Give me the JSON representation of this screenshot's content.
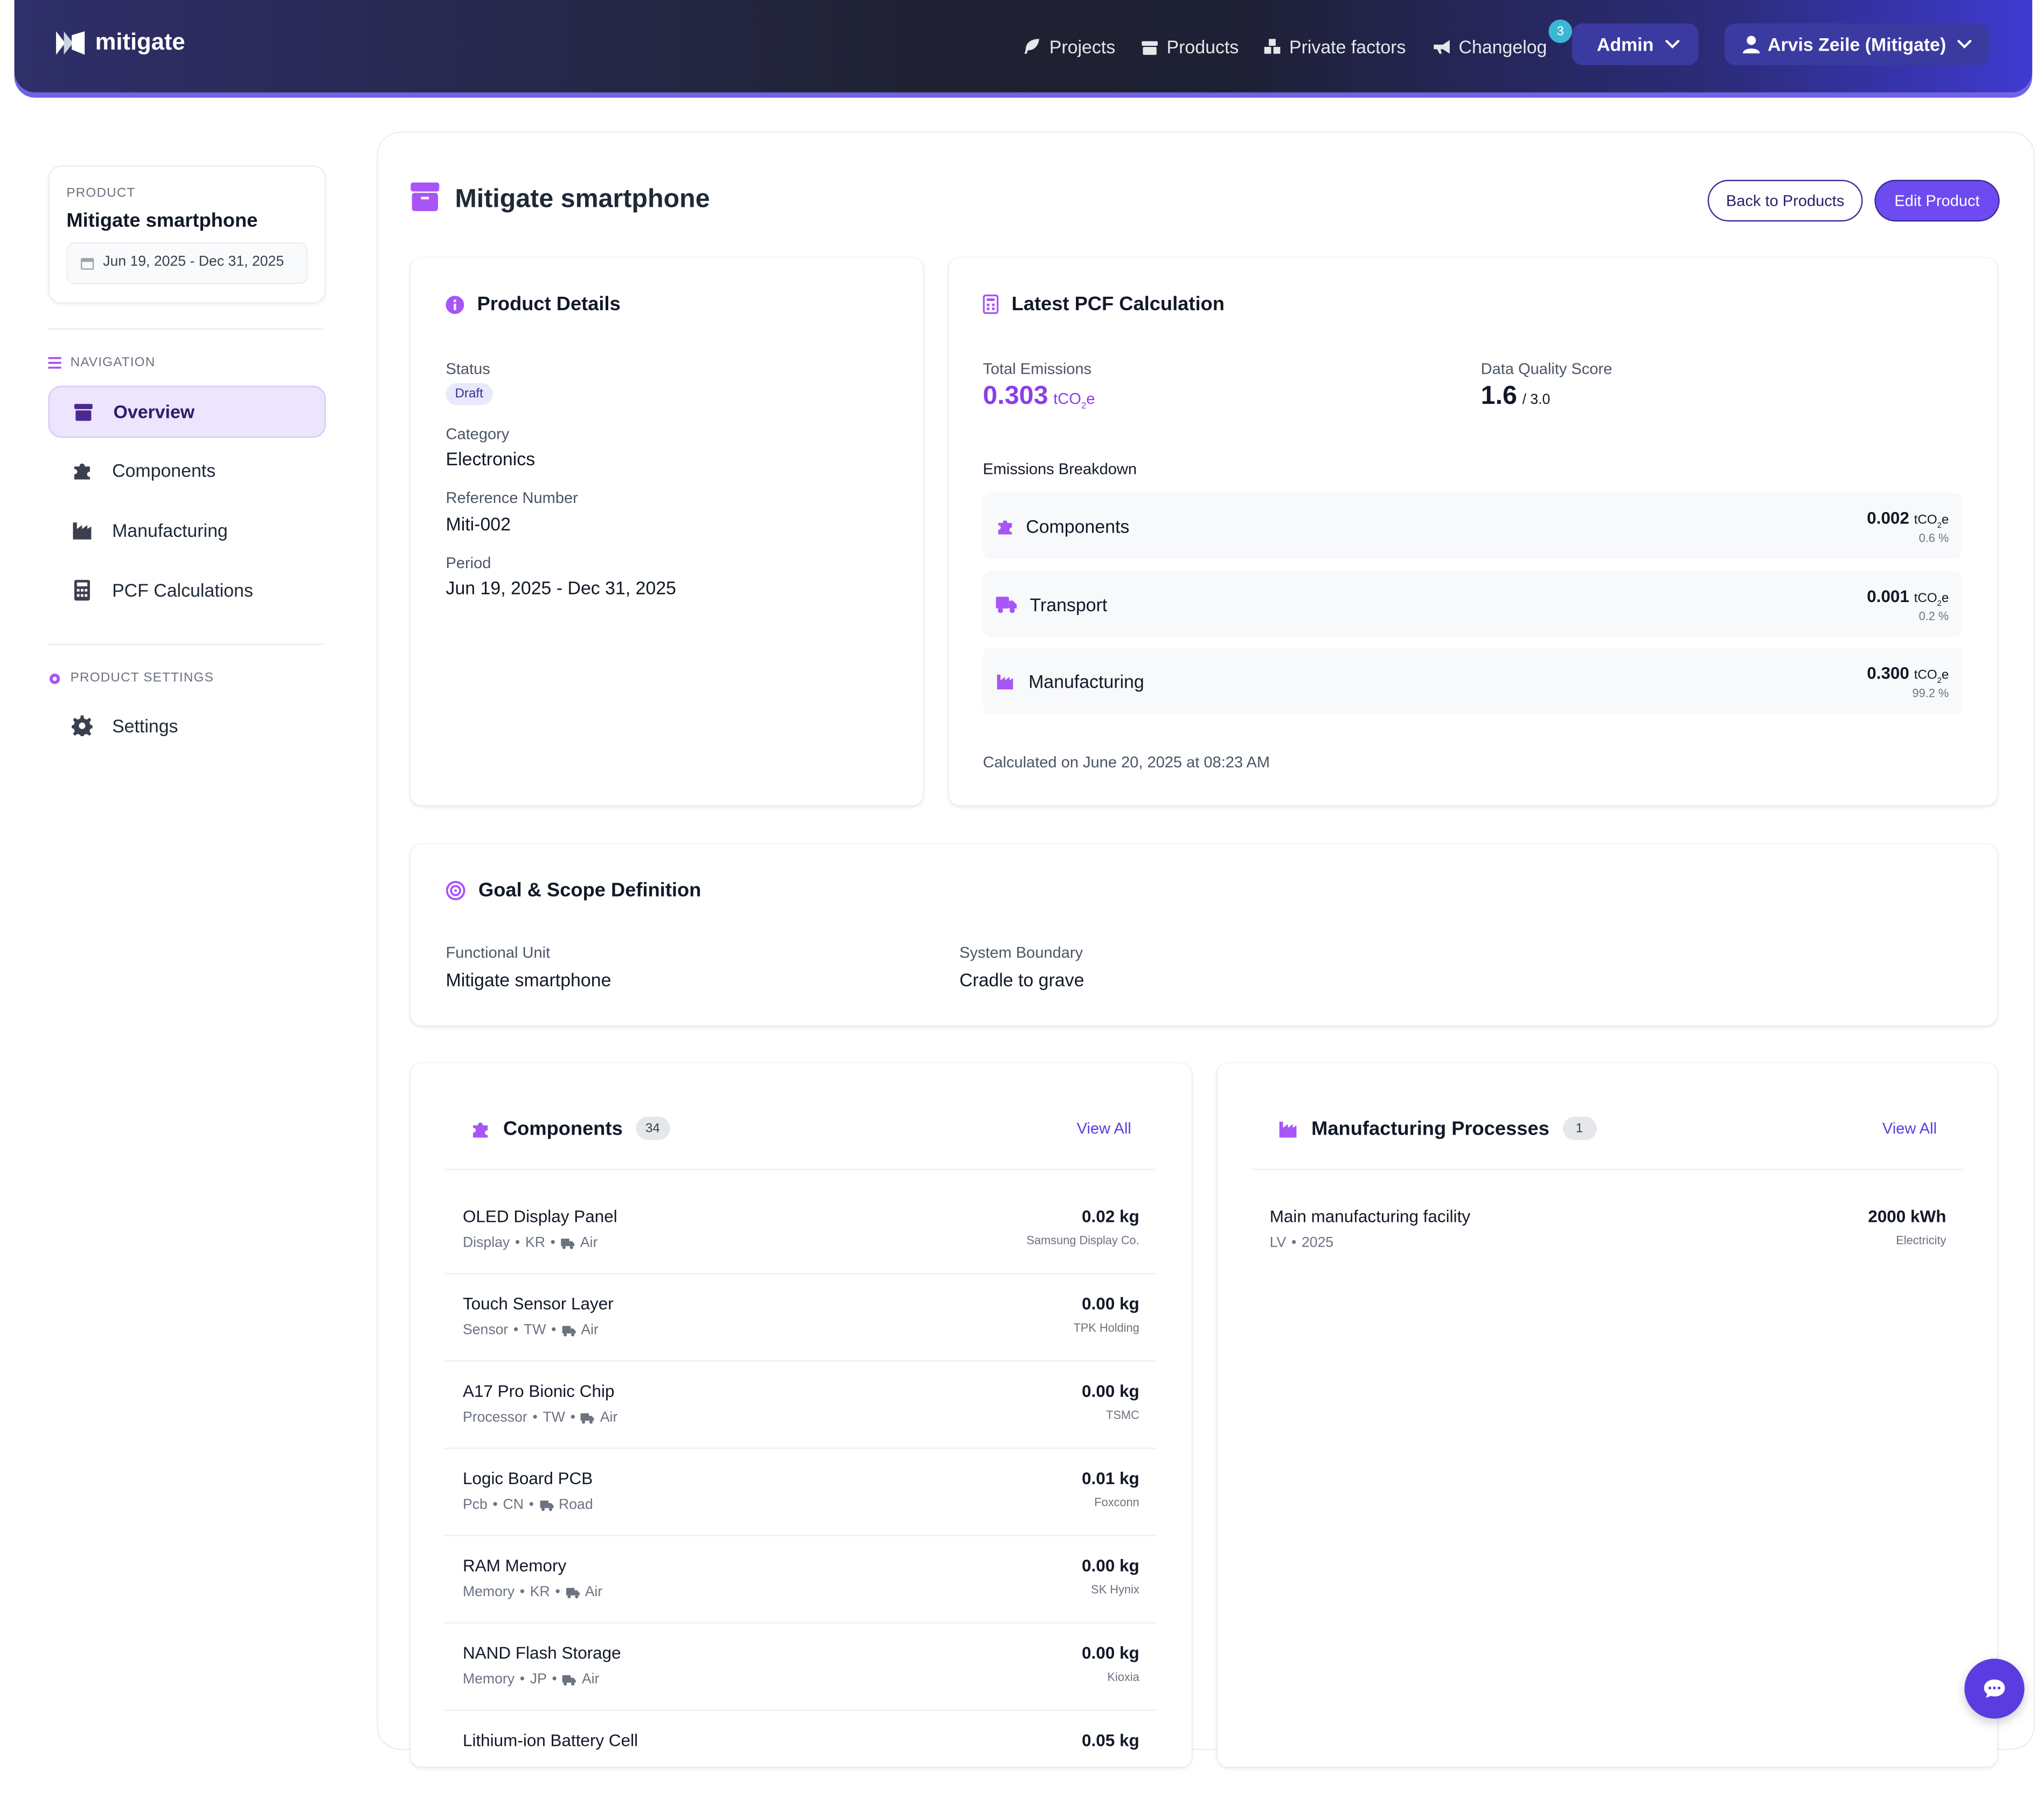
{
  "brand": {
    "name": "mitigate"
  },
  "topnav": {
    "projects": "Projects",
    "products": "Products",
    "private_factors": "Private factors",
    "changelog": "Changelog",
    "changelog_badge": "3",
    "admin": "Admin",
    "user": "Arvis Zeile (Mitigate)"
  },
  "sidebar": {
    "product_label": "PRODUCT",
    "product_name": "Mitigate smartphone",
    "period": "Jun 19, 2025 - Dec 31, 2025",
    "nav_heading": "NAVIGATION",
    "nav_items": [
      {
        "label": "Overview",
        "icon": "box-icon",
        "active": true
      },
      {
        "label": "Components",
        "icon": "puzzle-icon",
        "active": false
      },
      {
        "label": "Manufacturing",
        "icon": "factory-icon",
        "active": false
      },
      {
        "label": "PCF Calculations",
        "icon": "calculator-icon",
        "active": false
      }
    ],
    "settings_heading": "PRODUCT SETTINGS",
    "settings_item": "Settings"
  },
  "page": {
    "title": "Mitigate smartphone",
    "back_button": "Back to Products",
    "edit_button": "Edit Product"
  },
  "details": {
    "title": "Product Details",
    "status_label": "Status",
    "status_value": "Draft",
    "category_label": "Category",
    "category_value": "Electronics",
    "ref_label": "Reference Number",
    "ref_value": "Miti-002",
    "period_label": "Period",
    "period_value": "Jun 19, 2025 - Dec 31, 2025"
  },
  "pcf": {
    "title": "Latest PCF Calculation",
    "total_label": "Total Emissions",
    "total_value": "0.303",
    "unit_main": "tCO",
    "unit_sub": "2",
    "unit_end": "e",
    "dq_label": "Data Quality Score",
    "dq_value": "1.6",
    "dq_max": "/ 3.0",
    "breakdown_label": "Emissions Breakdown",
    "breakdown": [
      {
        "name": "Components",
        "value": "0.002",
        "pct": "0.6 %",
        "icon": "puzzle-icon"
      },
      {
        "name": "Transport",
        "value": "0.001",
        "pct": "0.2 %",
        "icon": "truck-icon"
      },
      {
        "name": "Manufacturing",
        "value": "0.300",
        "pct": "99.2 %",
        "icon": "factory-icon"
      }
    ],
    "calculated_on": "Calculated on June 20, 2025 at 08:23 AM"
  },
  "goal": {
    "title": "Goal & Scope Definition",
    "functional_unit_label": "Functional Unit",
    "functional_unit_value": "Mitigate smartphone",
    "boundary_label": "System Boundary",
    "boundary_value": "Cradle to grave"
  },
  "components": {
    "title": "Components",
    "count": "34",
    "view_all": "View All",
    "items": [
      {
        "name": "OLED Display Panel",
        "type": "Display",
        "country": "KR",
        "mode": "Air",
        "weight": "0.02 kg",
        "supplier": "Samsung Display Co."
      },
      {
        "name": "Touch Sensor Layer",
        "type": "Sensor",
        "country": "TW",
        "mode": "Air",
        "weight": "0.00 kg",
        "supplier": "TPK Holding"
      },
      {
        "name": "A17 Pro Bionic Chip",
        "type": "Processor",
        "country": "TW",
        "mode": "Air",
        "weight": "0.00 kg",
        "supplier": "TSMC"
      },
      {
        "name": "Logic Board PCB",
        "type": "Pcb",
        "country": "CN",
        "mode": "Road",
        "weight": "0.01 kg",
        "supplier": "Foxconn"
      },
      {
        "name": "RAM Memory",
        "type": "Memory",
        "country": "KR",
        "mode": "Air",
        "weight": "0.00 kg",
        "supplier": "SK Hynix"
      },
      {
        "name": "NAND Flash Storage",
        "type": "Memory",
        "country": "JP",
        "mode": "Air",
        "weight": "0.00 kg",
        "supplier": "Kioxia"
      },
      {
        "name": "Lithium-ion Battery Cell",
        "type": "",
        "country": "",
        "mode": "",
        "weight": "0.05 kg",
        "supplier": ""
      }
    ]
  },
  "manufacturing": {
    "title": "Manufacturing Processes",
    "count": "1",
    "view_all": "View All",
    "items": [
      {
        "name": "Main manufacturing facility",
        "country": "LV",
        "year": "2025",
        "amount": "2000 kWh",
        "source": "Electricity"
      }
    ]
  },
  "sep": "•",
  "colors": {
    "accent": "#6d4bf0",
    "purple": "#a855f7",
    "total": "#8b3ee8"
  }
}
